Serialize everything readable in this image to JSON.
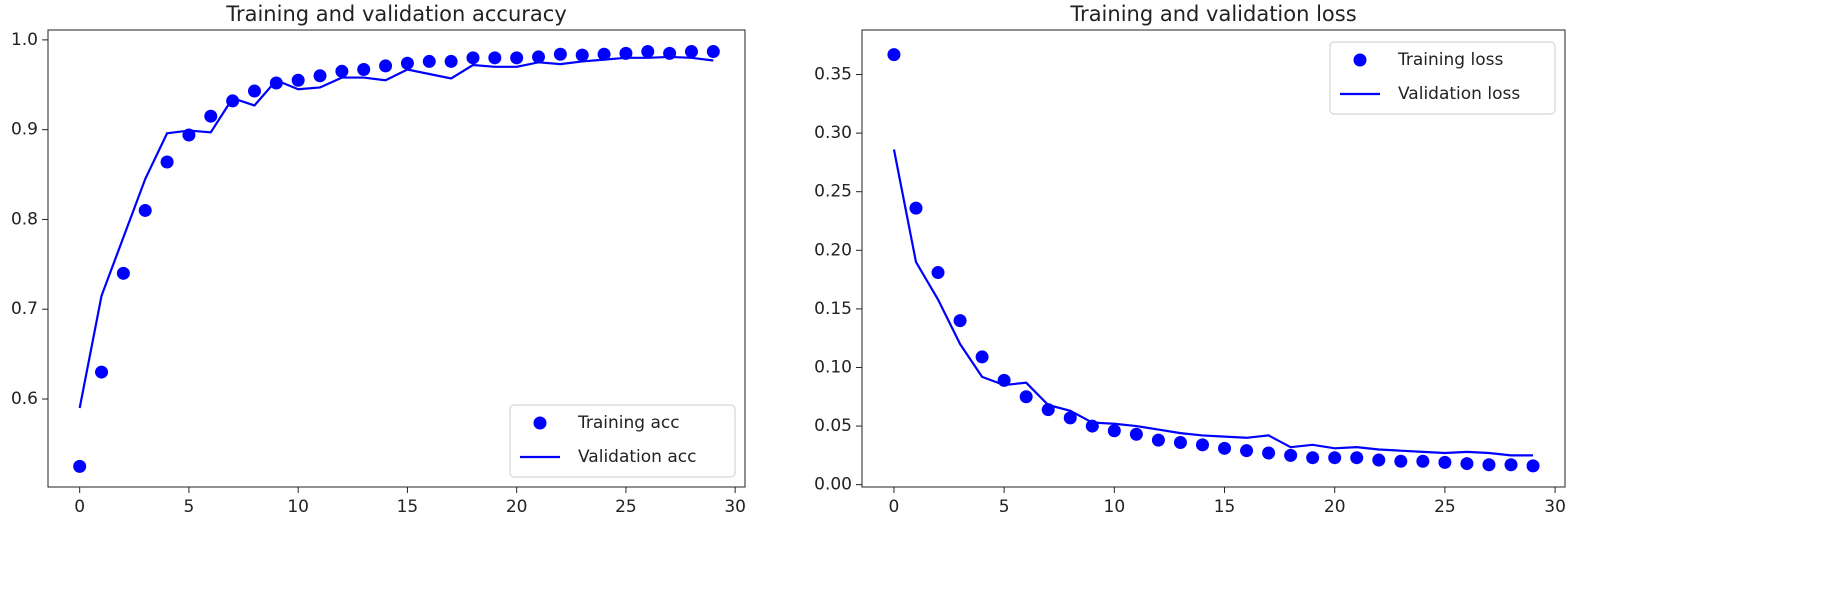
{
  "chart_data": [
    {
      "type": "line",
      "title": "Training and validation accuracy",
      "x": [
        0,
        1,
        2,
        3,
        4,
        5,
        6,
        7,
        8,
        9,
        10,
        11,
        12,
        13,
        14,
        15,
        16,
        17,
        18,
        19,
        20,
        21,
        22,
        23,
        24,
        25,
        26,
        27,
        28,
        29
      ],
      "series": [
        {
          "name": "Training acc",
          "color": "#0000ff",
          "mode": "markers",
          "values": [
            0.525,
            0.63,
            0.74,
            0.81,
            0.864,
            0.894,
            0.915,
            0.932,
            0.943,
            0.952,
            0.955,
            0.96,
            0.965,
            0.967,
            0.971,
            0.974,
            0.976,
            0.976,
            0.98,
            0.98,
            0.98,
            0.981,
            0.984,
            0.983,
            0.984,
            0.985,
            0.987,
            0.985,
            0.987,
            0.987
          ]
        },
        {
          "name": "Validation acc",
          "color": "#0000ff",
          "mode": "lines",
          "values": [
            0.59,
            0.715,
            0.78,
            0.845,
            0.896,
            0.899,
            0.897,
            0.935,
            0.927,
            0.955,
            0.945,
            0.947,
            0.958,
            0.958,
            0.955,
            0.967,
            0.962,
            0.957,
            0.972,
            0.97,
            0.97,
            0.975,
            0.973,
            0.976,
            0.978,
            0.98,
            0.98,
            0.981,
            0.98,
            0.977
          ]
        }
      ],
      "xlim": [
        -1.45,
        30.45
      ],
      "xticks": [
        0,
        5,
        10,
        15,
        20,
        25,
        30
      ],
      "ylim": [
        0.502,
        1.011
      ],
      "yticks": [
        0.6,
        0.7,
        0.8,
        0.9,
        {
          "value": 1,
          "label": "1.0"
        }
      ],
      "grid": false,
      "legend": "lower right"
    },
    {
      "type": "line",
      "title": "Training and validation loss",
      "x": [
        0,
        1,
        2,
        3,
        4,
        5,
        6,
        7,
        8,
        9,
        10,
        11,
        12,
        13,
        14,
        15,
        16,
        17,
        18,
        19,
        20,
        21,
        22,
        23,
        24,
        25,
        26,
        27,
        28,
        29
      ],
      "series": [
        {
          "name": "Training loss",
          "color": "#0000ff",
          "mode": "markers",
          "values": [
            0.367,
            0.236,
            0.181,
            0.14,
            0.109,
            0.089,
            0.075,
            0.064,
            0.057,
            0.05,
            0.046,
            0.043,
            0.038,
            0.036,
            0.034,
            0.031,
            0.029,
            0.027,
            0.025,
            0.023,
            0.023,
            0.023,
            0.021,
            0.02,
            0.02,
            0.019,
            0.018,
            0.017,
            0.017,
            0.016
          ]
        },
        {
          "name": "Validation loss",
          "color": "#0000ff",
          "mode": "lines",
          "values": [
            0.286,
            0.19,
            0.158,
            0.12,
            0.092,
            0.085,
            0.087,
            0.068,
            0.063,
            0.053,
            0.052,
            0.05,
            0.047,
            0.044,
            0.042,
            0.041,
            0.04,
            0.042,
            0.032,
            0.034,
            0.031,
            0.032,
            0.03,
            0.029,
            0.028,
            0.027,
            0.028,
            0.027,
            0.025,
            0.025
          ]
        }
      ],
      "xlim": [
        -1.45,
        30.45
      ],
      "xticks": [
        0,
        5,
        10,
        15,
        20,
        25,
        30
      ],
      "ylim": [
        -0.002,
        0.388
      ],
      "yticks": [
        {
          "value": 0,
          "label": "0.00"
        },
        0.05,
        {
          "value": 0.1,
          "label": "0.10"
        },
        0.15,
        {
          "value": 0.2,
          "label": "0.20"
        },
        0.25,
        {
          "value": 0.3,
          "label": "0.30"
        },
        0.35
      ],
      "grid": false,
      "legend": "upper right"
    }
  ]
}
